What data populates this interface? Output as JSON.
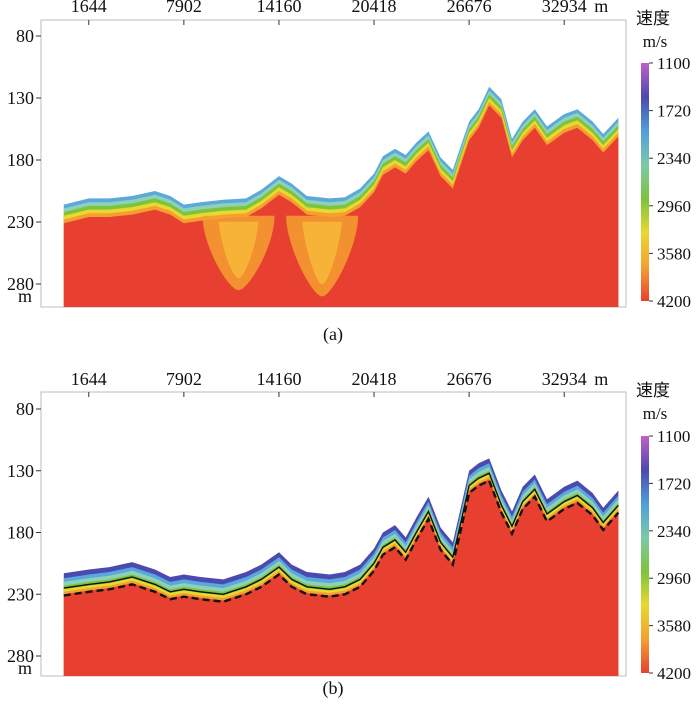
{
  "chart_data": [
    {
      "type": "heatmap",
      "caption": "(a)",
      "x_ticks": [
        "1644",
        "7902",
        "14160",
        "20418",
        "26676",
        "32934"
      ],
      "x_unit": "m",
      "y_ticks": [
        "80",
        "130",
        "180",
        "230",
        "280"
      ],
      "y_unit": "m",
      "ylim": [
        80,
        300
      ],
      "colorbar": {
        "title": "速度",
        "unit": "m/s",
        "ticks": [
          "1100",
          "1720",
          "2340",
          "2960",
          "3580",
          "4200"
        ],
        "colors": [
          "#c060c8",
          "#4a4ab0",
          "#4f9fd9",
          "#7cc9a8",
          "#7cc43c",
          "#e8d830",
          "#f4a030",
          "#e84030"
        ]
      },
      "surface": {
        "x": [
          0,
          1644,
          3000,
          4500,
          6000,
          7000,
          7902,
          9000,
          10500,
          12000,
          13000,
          14160,
          15000,
          16000,
          17500,
          18500,
          19500,
          20418,
          21000,
          21800,
          22500,
          23200,
          24000,
          24800,
          25600,
          26200,
          26676,
          27300,
          28000,
          28800,
          29500,
          30200,
          31000,
          31800,
          32934,
          33800,
          34800,
          35500,
          36500
        ],
        "y": [
          225,
          220,
          220,
          218,
          214,
          218,
          225,
          223,
          221,
          220,
          213,
          202,
          208,
          218,
          220,
          219,
          212,
          200,
          186,
          180,
          185,
          175,
          166,
          187,
          197,
          175,
          158,
          148,
          130,
          140,
          172,
          158,
          148,
          162,
          152,
          148,
          158,
          168,
          155
        ]
      },
      "low_velocity_pockets": [
        {
          "x": 11500,
          "depth": 285
        },
        {
          "x": 17000,
          "depth": 290
        }
      ]
    },
    {
      "type": "heatmap",
      "caption": "(b)",
      "x_ticks": [
        "1644",
        "7902",
        "14160",
        "20418",
        "26676",
        "32934"
      ],
      "x_unit": "m",
      "y_ticks": [
        "80",
        "130",
        "180",
        "230",
        "280"
      ],
      "y_unit": "m",
      "ylim": [
        80,
        300
      ],
      "colorbar": {
        "title": "速度",
        "unit": "m/s",
        "ticks": [
          "1100",
          "1720",
          "2340",
          "2960",
          "3580",
          "4200"
        ],
        "colors": [
          "#c060c8",
          "#4a4ab0",
          "#4f9fd9",
          "#7cc9a8",
          "#7cc43c",
          "#e8d830",
          "#f4a030",
          "#e84030"
        ]
      },
      "surface": {
        "x": [
          0,
          1644,
          3000,
          4500,
          6000,
          7000,
          7902,
          9000,
          10500,
          12000,
          13000,
          14160,
          15000,
          16000,
          17500,
          18500,
          19500,
          20418,
          21000,
          21800,
          22500,
          23200,
          24000,
          24800,
          25600,
          26200,
          26676,
          27300,
          28000,
          28800,
          29500,
          30200,
          31000,
          31800,
          32934,
          33800,
          34800,
          35500,
          36500
        ],
        "y": [
          225,
          222,
          220,
          216,
          222,
          228,
          226,
          228,
          230,
          224,
          218,
          208,
          218,
          224,
          226,
          224,
          218,
          205,
          192,
          186,
          196,
          180,
          163,
          188,
          200,
          168,
          142,
          136,
          132,
          158,
          175,
          155,
          145,
          165,
          155,
          150,
          160,
          172,
          158
        ]
      },
      "interface_offset_m": 4
    }
  ]
}
